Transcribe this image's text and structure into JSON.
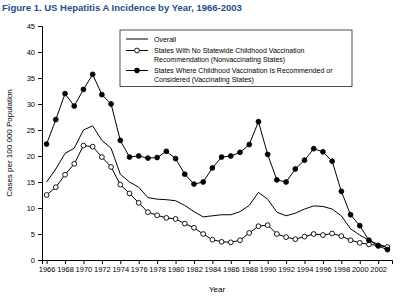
{
  "chart_data": {
    "type": "line",
    "title": "Figure 1. US Hepatitis A Incidence by Year, 1966-2003",
    "x_label": "Year",
    "y_label": "Cases per 100 000 Population",
    "x": [
      1966,
      1967,
      1968,
      1969,
      1970,
      1971,
      1972,
      1973,
      1974,
      1975,
      1976,
      1977,
      1978,
      1979,
      1980,
      1981,
      1982,
      1983,
      1984,
      1985,
      1986,
      1987,
      1988,
      1989,
      1990,
      1991,
      1992,
      1993,
      1994,
      1995,
      1996,
      1997,
      1998,
      1999,
      2000,
      2001,
      2002,
      2003
    ],
    "series": [
      {
        "name": "Overall",
        "color": "#000000",
        "marker": "none",
        "line_style": "solid",
        "values": [
          15,
          17.5,
          20.5,
          21.5,
          25,
          25.8,
          23,
          21.5,
          16.5,
          15,
          14,
          12,
          11.7,
          11.6,
          11.4,
          10.5,
          9.3,
          8.3,
          8.5,
          8.7,
          8.7,
          9.3,
          10.5,
          13,
          11.7,
          9.2,
          8.5,
          9,
          9.8,
          10.4,
          10.3,
          9.8,
          8.5,
          6,
          4.8,
          3.8,
          3,
          2.5
        ]
      },
      {
        "name": "States With No Statewide Childhood Vaccination Recommendation (Nonvaccinating States)",
        "color": "#000000",
        "marker": "open-circle",
        "line_style": "solid",
        "values": [
          12.5,
          14,
          16.4,
          18.5,
          22,
          21.8,
          19.8,
          17.9,
          14.5,
          12.8,
          11,
          9.2,
          8.6,
          8.1,
          7.9,
          7,
          6.2,
          5,
          3.9,
          3.5,
          3.4,
          3.8,
          5.2,
          6.5,
          6.7,
          5,
          4.4,
          4,
          4.5,
          5,
          4.8,
          5.1,
          4.6,
          3.8,
          3.3,
          3,
          2.8,
          2.5
        ]
      },
      {
        "name": "States Where Childhood Vaccination Is Recommended or Considered (Vaccinating States)",
        "color": "#000000",
        "marker": "filled-circle",
        "line_style": "solid",
        "values": [
          22.3,
          27,
          32,
          29.6,
          32.8,
          35.7,
          31.8,
          30,
          23,
          19.8,
          20,
          19.6,
          19.7,
          20.9,
          19.5,
          16.5,
          14.6,
          15,
          17.7,
          19.8,
          20,
          20.7,
          22.2,
          26.6,
          20.3,
          15.4,
          15,
          17.5,
          19.2,
          21.4,
          20.8,
          19,
          13.2,
          8.7,
          6.6,
          3.8,
          2.7,
          2
        ]
      }
    ],
    "xlim": [
      1965.5,
      2003.5
    ],
    "xticks": [
      1966,
      1968,
      1970,
      1972,
      1974,
      1976,
      1978,
      1980,
      1982,
      1984,
      1986,
      1988,
      1990,
      1992,
      1994,
      1996,
      1998,
      2000,
      2002
    ],
    "ylim": [
      0,
      45
    ],
    "yticks": [
      0,
      5,
      10,
      15,
      20,
      25,
      30,
      35,
      40,
      45
    ],
    "grid": false,
    "legend": "top"
  }
}
